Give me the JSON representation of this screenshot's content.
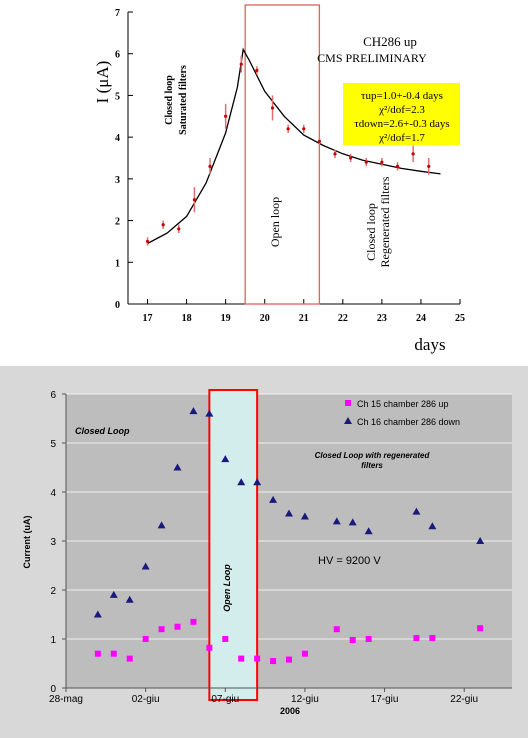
{
  "chart_data": [
    {
      "type": "scatter",
      "title": "CH286 up",
      "subtitle": "CMS PRELIMINARY",
      "xlabel": "days",
      "ylabel": "I (μA)",
      "xlim": [
        16.5,
        25
      ],
      "ylim": [
        0,
        7
      ],
      "xticks": [
        17,
        18,
        19,
        20,
        21,
        22,
        23,
        24,
        25
      ],
      "yticks": [
        0,
        1,
        2,
        3,
        4,
        5,
        6,
        7
      ],
      "grid": false,
      "legend": "none",
      "points": {
        "x": [
          17.0,
          17.4,
          17.8,
          18.2,
          18.6,
          19.0,
          19.4,
          19.8,
          20.2,
          20.6,
          21.0,
          21.4,
          21.8,
          22.2,
          22.6,
          23.0,
          23.4,
          23.8,
          24.2
        ],
        "y": [
          1.5,
          1.9,
          1.8,
          2.5,
          3.3,
          4.5,
          5.75,
          5.6,
          4.7,
          4.2,
          4.2,
          3.9,
          3.6,
          3.5,
          3.4,
          3.4,
          3.3,
          3.6,
          3.3
        ],
        "err": [
          0.1,
          0.1,
          0.1,
          0.3,
          0.2,
          0.3,
          0.2,
          0.1,
          0.3,
          0.1,
          0.1,
          0.1,
          0.1,
          0.1,
          0.1,
          0.1,
          0.1,
          0.2,
          0.2
        ]
      },
      "fit": {
        "x": [
          17.0,
          17.5,
          18.0,
          18.5,
          19.0,
          19.3,
          19.45,
          19.6,
          20.0,
          20.5,
          21.0,
          21.5,
          22.0,
          22.5,
          23.0,
          23.5,
          24.0,
          24.5
        ],
        "y": [
          1.45,
          1.7,
          2.1,
          2.9,
          4.1,
          5.2,
          6.1,
          5.85,
          5.1,
          4.5,
          4.05,
          3.8,
          3.6,
          3.45,
          3.35,
          3.25,
          3.18,
          3.12
        ]
      },
      "region_xrange": [
        19.5,
        21.4
      ],
      "region_labels": {
        "closed_loop": "Closed loop",
        "saturated": "Saturated filters",
        "open_loop": "Open loop",
        "closed_loop_regen": "Closed loop",
        "regenerated": "Regenerated filters"
      },
      "fit_box": {
        "line1": "τup=1.0+-0.4 days",
        "line2": "χ²/dof=2.3",
        "line3": "τdown=2.6+-0.3 days",
        "line4": "χ²/dof=1.7"
      },
      "colors": {
        "points": "#cc0000",
        "fit": "#000000",
        "box": "#ffff00",
        "region": "#e06060"
      }
    },
    {
      "type": "scatter",
      "xlabel": "2006",
      "ylabel": "Current (uA)",
      "ylim": [
        0,
        6
      ],
      "yticks": [
        0,
        1,
        2,
        3,
        4,
        5,
        6
      ],
      "xlim": [
        0,
        28
      ],
      "categories": [
        "28-mag",
        "02-giu",
        "07-giu",
        "12-giu",
        "17-giu",
        "22-giu"
      ],
      "category_positions": [
        0,
        5,
        10,
        15,
        20,
        25
      ],
      "grid": true,
      "legend": "top-right",
      "series": [
        {
          "name": "Ch 15 chamber 286 up",
          "color": "#ff00ff",
          "marker": "square",
          "x": [
            2,
            3,
            4,
            5,
            6,
            7,
            8,
            9,
            10,
            11,
            12,
            13,
            14,
            15,
            17,
            18,
            19,
            22,
            23,
            26
          ],
          "y": [
            0.7,
            0.7,
            0.6,
            1.0,
            1.2,
            1.25,
            1.35,
            0.82,
            1.0,
            0.6,
            0.6,
            0.55,
            0.58,
            0.7,
            1.2,
            0.98,
            1.0,
            1.02,
            1.02,
            1.22
          ]
        },
        {
          "name": "Ch 16 chamber 286 down",
          "color": "#1a1a7a",
          "marker": "triangle",
          "x": [
            2,
            3,
            4,
            5,
            6,
            7,
            8,
            9,
            10,
            11,
            12,
            13,
            14,
            15,
            17,
            18,
            19,
            22,
            23,
            26
          ],
          "y": [
            1.5,
            1.9,
            1.8,
            2.48,
            3.32,
            4.5,
            5.65,
            5.6,
            4.67,
            4.2,
            4.2,
            3.84,
            3.56,
            3.5,
            3.4,
            3.38,
            3.2,
            3.6,
            3.3,
            3.0
          ]
        }
      ],
      "open_loop_xrange": [
        9,
        12
      ],
      "annotations": {
        "closed_loop": "Closed Loop",
        "closed_loop_regen_line1": "Closed Loop with regenerated",
        "closed_loop_regen_line2": "filters",
        "open_loop": "Open Loop",
        "hv": "HV = 9200 V"
      },
      "colors": {
        "plot_bg": "#bdbdbd",
        "open_region": "#d3ecec",
        "open_border": "#ff0000",
        "frame": "#d8d8d8"
      }
    }
  ]
}
